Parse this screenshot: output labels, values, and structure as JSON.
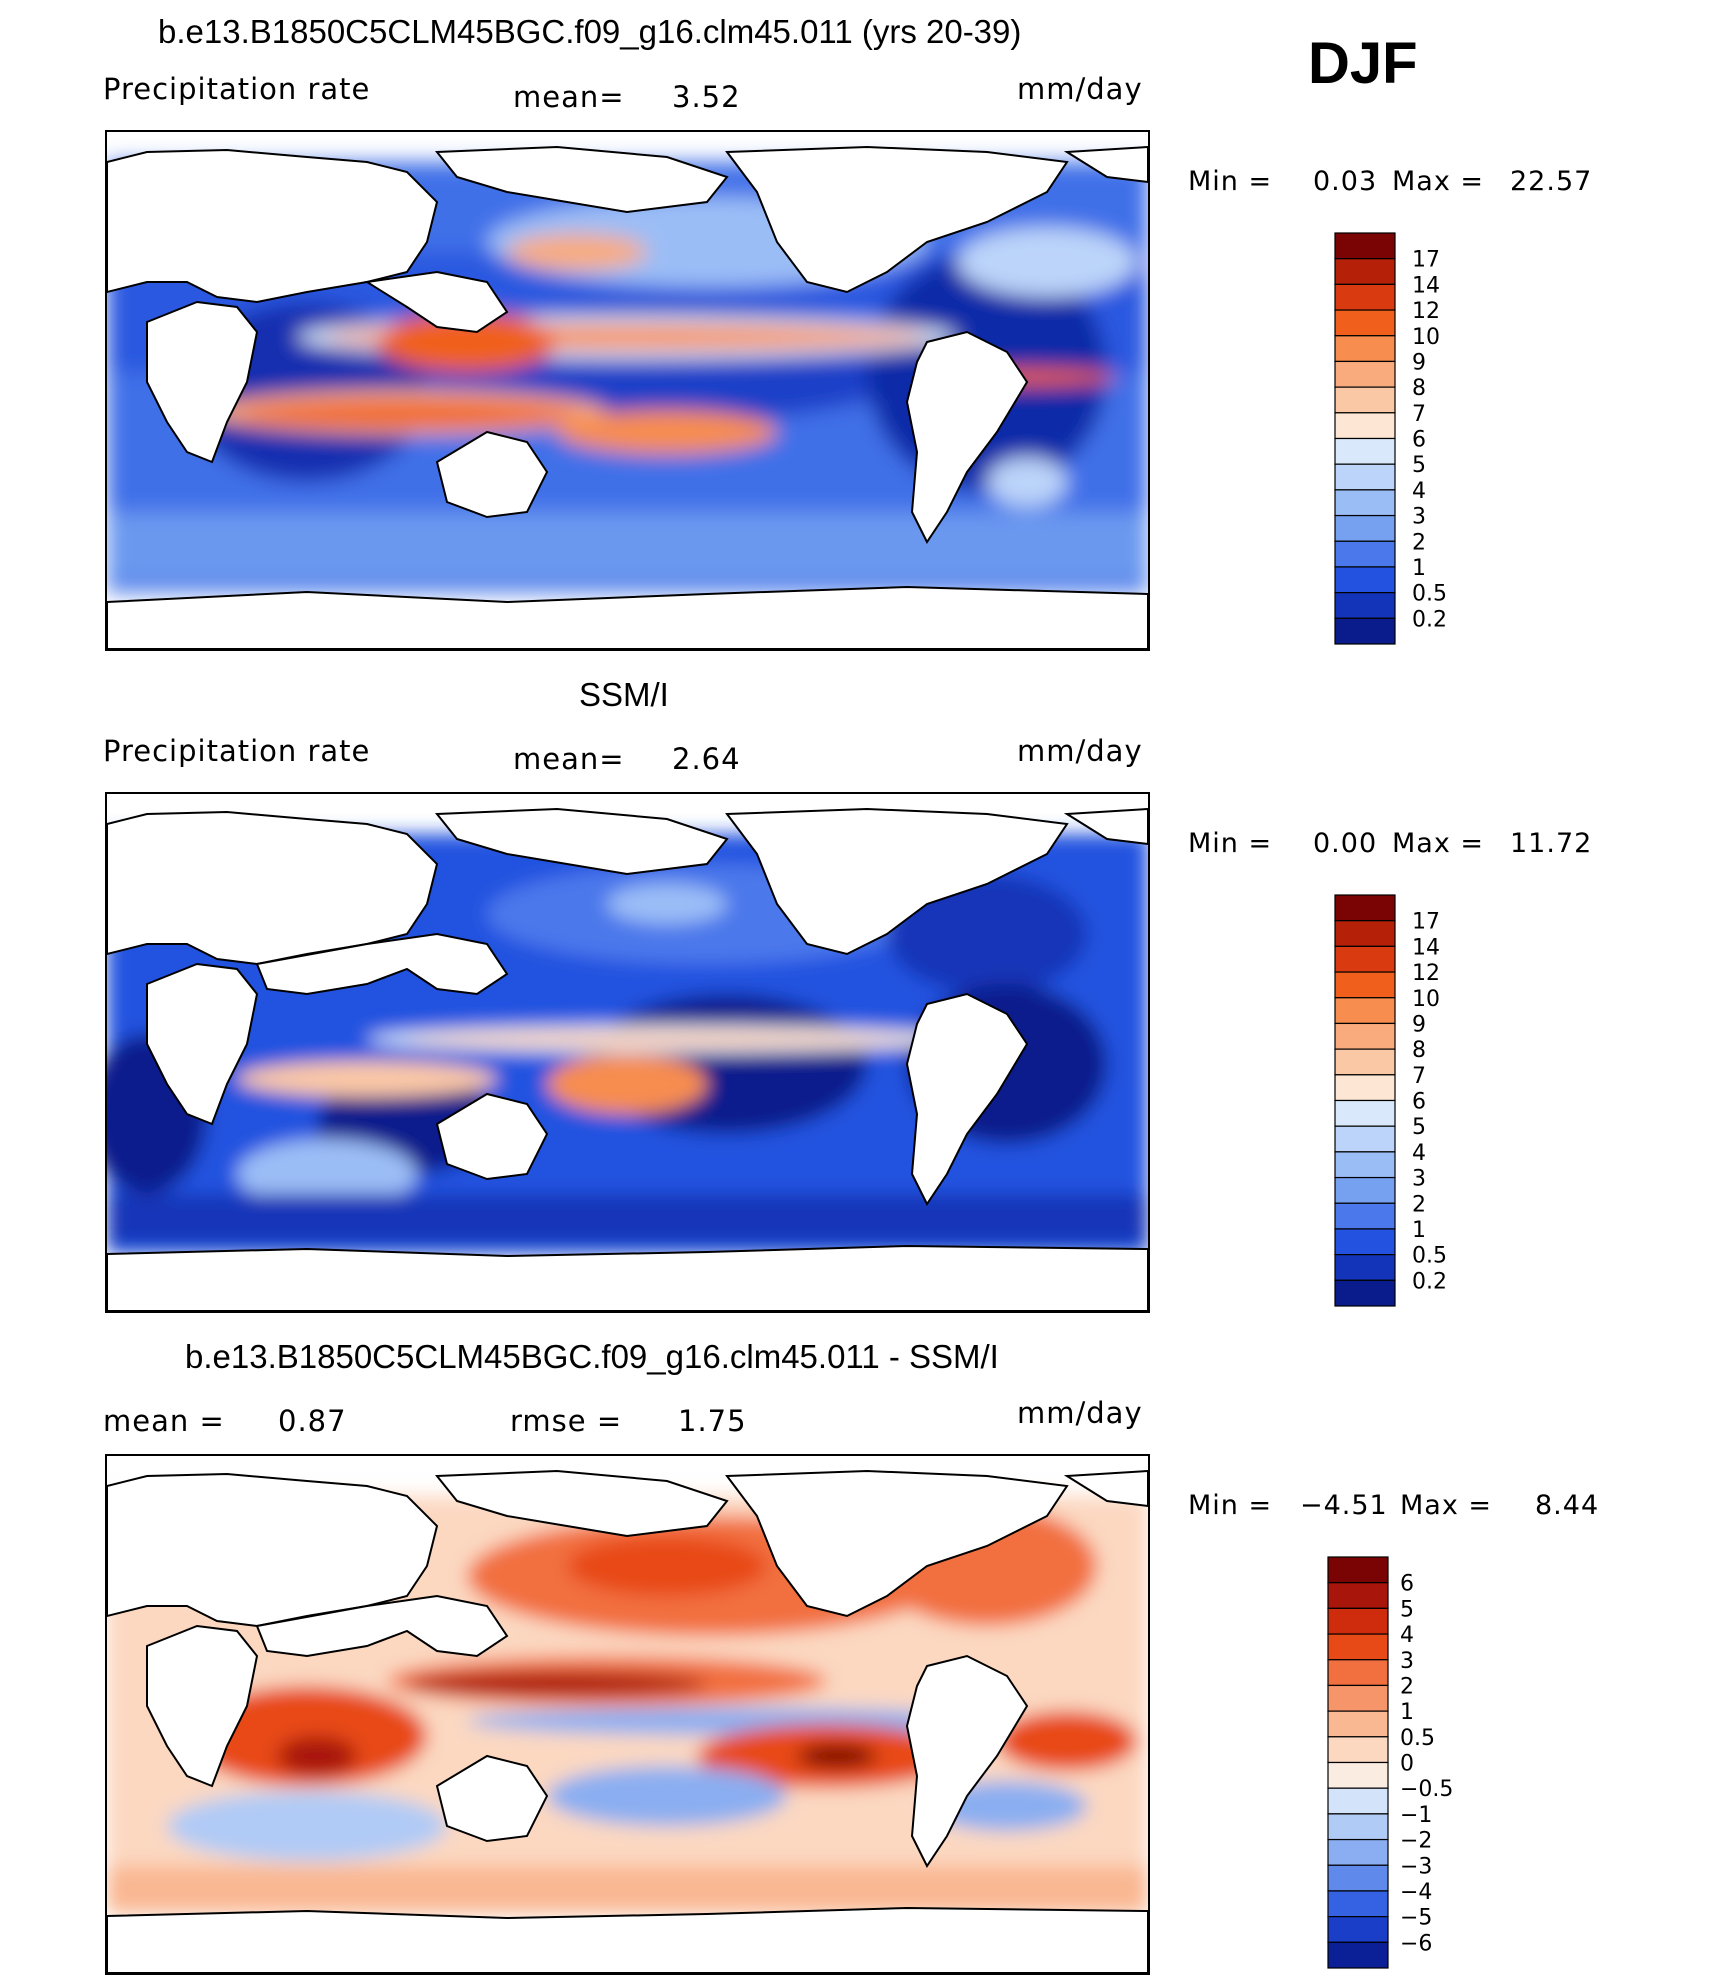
{
  "season": "DJF",
  "panels": [
    {
      "title": "b.e13.B1850C5CLM45BGC.f09_g16.clm45.011 (yrs 20-39)",
      "left_label": "Precipitation rate",
      "mid_label": "mean=",
      "mid_value": "3.52",
      "units": "mm/day",
      "min_label": "Min =",
      "min_value": "0.03",
      "max_label": "Max =",
      "max_value": "22.57",
      "colorbar": {
        "labels": [
          "17",
          "14",
          "12",
          "10",
          "9",
          "8",
          "7",
          "6",
          "5",
          "4",
          "3",
          "2",
          "1",
          "0.5",
          "0.2"
        ],
        "colors": [
          "#7a0403",
          "#b52008",
          "#d93a10",
          "#f0601c",
          "#f78d4f",
          "#f9ab7d",
          "#fbc8a6",
          "#fde6d3",
          "#d9e9fb",
          "#bcd4f9",
          "#9bbdf6",
          "#76a0f0",
          "#4b78eb",
          "#2352e0",
          "#1334b8",
          "#0a1b8c"
        ]
      }
    },
    {
      "title": "SSM/I",
      "left_label": "Precipitation rate",
      "mid_label": "mean=",
      "mid_value": "2.64",
      "units": "mm/day",
      "min_label": "Min =",
      "min_value": "0.00",
      "max_label": "Max =",
      "max_value": "11.72",
      "colorbar": {
        "labels": [
          "17",
          "14",
          "12",
          "10",
          "9",
          "8",
          "7",
          "6",
          "5",
          "4",
          "3",
          "2",
          "1",
          "0.5",
          "0.2"
        ],
        "colors": [
          "#7a0403",
          "#b52008",
          "#d93a10",
          "#f0601c",
          "#f78d4f",
          "#f9ab7d",
          "#fbc8a6",
          "#fde6d3",
          "#d9e9fb",
          "#bcd4f9",
          "#9bbdf6",
          "#76a0f0",
          "#4b78eb",
          "#2352e0",
          "#1334b8",
          "#0a1b8c"
        ]
      }
    },
    {
      "title": "b.e13.B1850C5CLM45BGC.f09_g16.clm45.011 - SSM/I",
      "left_label": "mean =",
      "left_value": "0.87",
      "mid_label": "rmse =",
      "mid_value": "1.75",
      "units": "mm/day",
      "min_label": "Min =",
      "min_value": "−4.51",
      "max_label": "Max =",
      "max_value": "8.44",
      "colorbar": {
        "labels": [
          "6",
          "5",
          "4",
          "3",
          "2",
          "1",
          "0.5",
          "0",
          "−0.5",
          "−1",
          "−2",
          "−3",
          "−4",
          "−5",
          "−6"
        ],
        "colors": [
          "#7a0403",
          "#a8150a",
          "#cf2c0e",
          "#e84a17",
          "#f27040",
          "#f6946a",
          "#f9b792",
          "#fcd8c1",
          "#fbece2",
          "#d3e4fa",
          "#b0cbf6",
          "#8aaef1",
          "#5f8aec",
          "#3562e3",
          "#1a3ec8",
          "#0b1f96"
        ]
      }
    }
  ]
}
